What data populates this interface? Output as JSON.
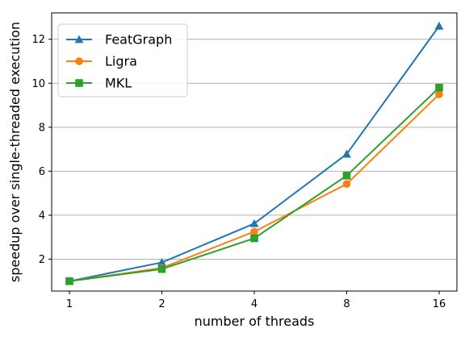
{
  "chart_data": {
    "type": "line",
    "xlabel": "number of threads",
    "ylabel": "speedup over single-threaded execution",
    "x": [
      1,
      2,
      4,
      8,
      16
    ],
    "x_tick_labels": [
      "1",
      "2",
      "4",
      "8",
      "16"
    ],
    "x_scale": "log2",
    "ylim": [
      0.55,
      13.2
    ],
    "y_ticks": [
      2,
      4,
      6,
      8,
      10,
      12
    ],
    "y_tick_labels": [
      "2",
      "4",
      "6",
      "8",
      "10",
      "12"
    ],
    "grid": "horizontal",
    "legend_position": "top-left",
    "series": [
      {
        "name": "FeatGraph",
        "color": "#1f77b4",
        "marker": "triangle",
        "values": [
          1.0,
          1.85,
          3.62,
          6.78,
          12.6
        ]
      },
      {
        "name": "Ligra",
        "color": "#ff7f0e",
        "marker": "circle",
        "values": [
          1.0,
          1.6,
          3.25,
          5.42,
          9.5
        ]
      },
      {
        "name": "MKL",
        "color": "#2ca02c",
        "marker": "square",
        "values": [
          1.0,
          1.55,
          2.95,
          5.8,
          9.8
        ]
      }
    ]
  }
}
